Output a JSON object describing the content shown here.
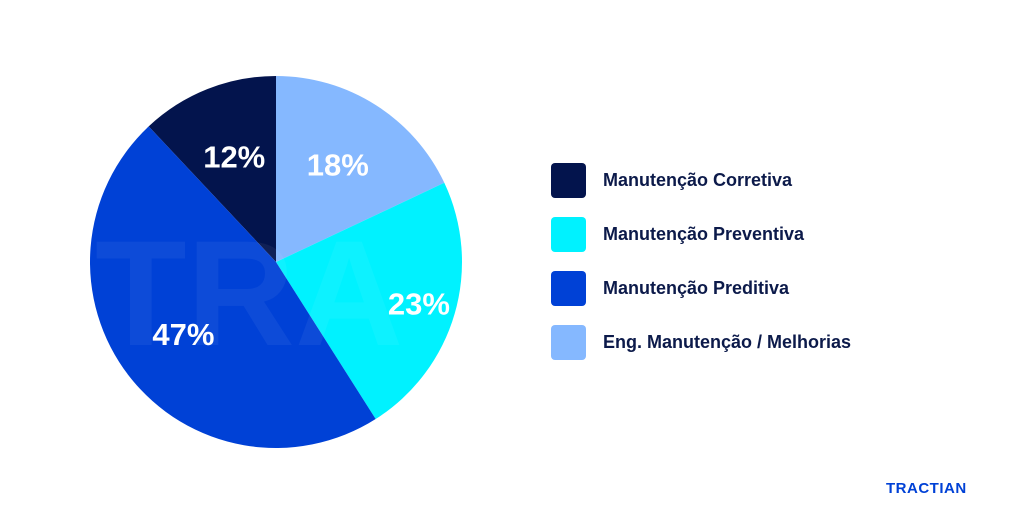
{
  "chart_data": {
    "type": "pie",
    "slices": [
      {
        "label": "Manutenção Corretiva",
        "value": 12,
        "display": "12%",
        "color": "#03144d"
      },
      {
        "label": "Eng. Manutenção / Melhorias",
        "value": 18,
        "display": "18%",
        "color": "#85b8ff"
      },
      {
        "label": "Manutenção Preventiva",
        "value": 23,
        "display": "23%",
        "color": "#00f2ff"
      },
      {
        "label": "Manutenção Preditiva",
        "value": 47,
        "display": "47%",
        "color": "#0041d6"
      }
    ],
    "legend": [
      {
        "label": "Manutenção Corretiva",
        "color": "#03144d"
      },
      {
        "label": "Manutenção Preventiva",
        "color": "#00f2ff"
      },
      {
        "label": "Manutenção Preditiva",
        "color": "#0041d6"
      },
      {
        "label": "Eng. Manutenção / Melhorias",
        "color": "#85b8ff"
      }
    ],
    "legend_position": "right"
  },
  "watermark": "TRA",
  "brand": {
    "logo_text": "TRACTIAN"
  }
}
